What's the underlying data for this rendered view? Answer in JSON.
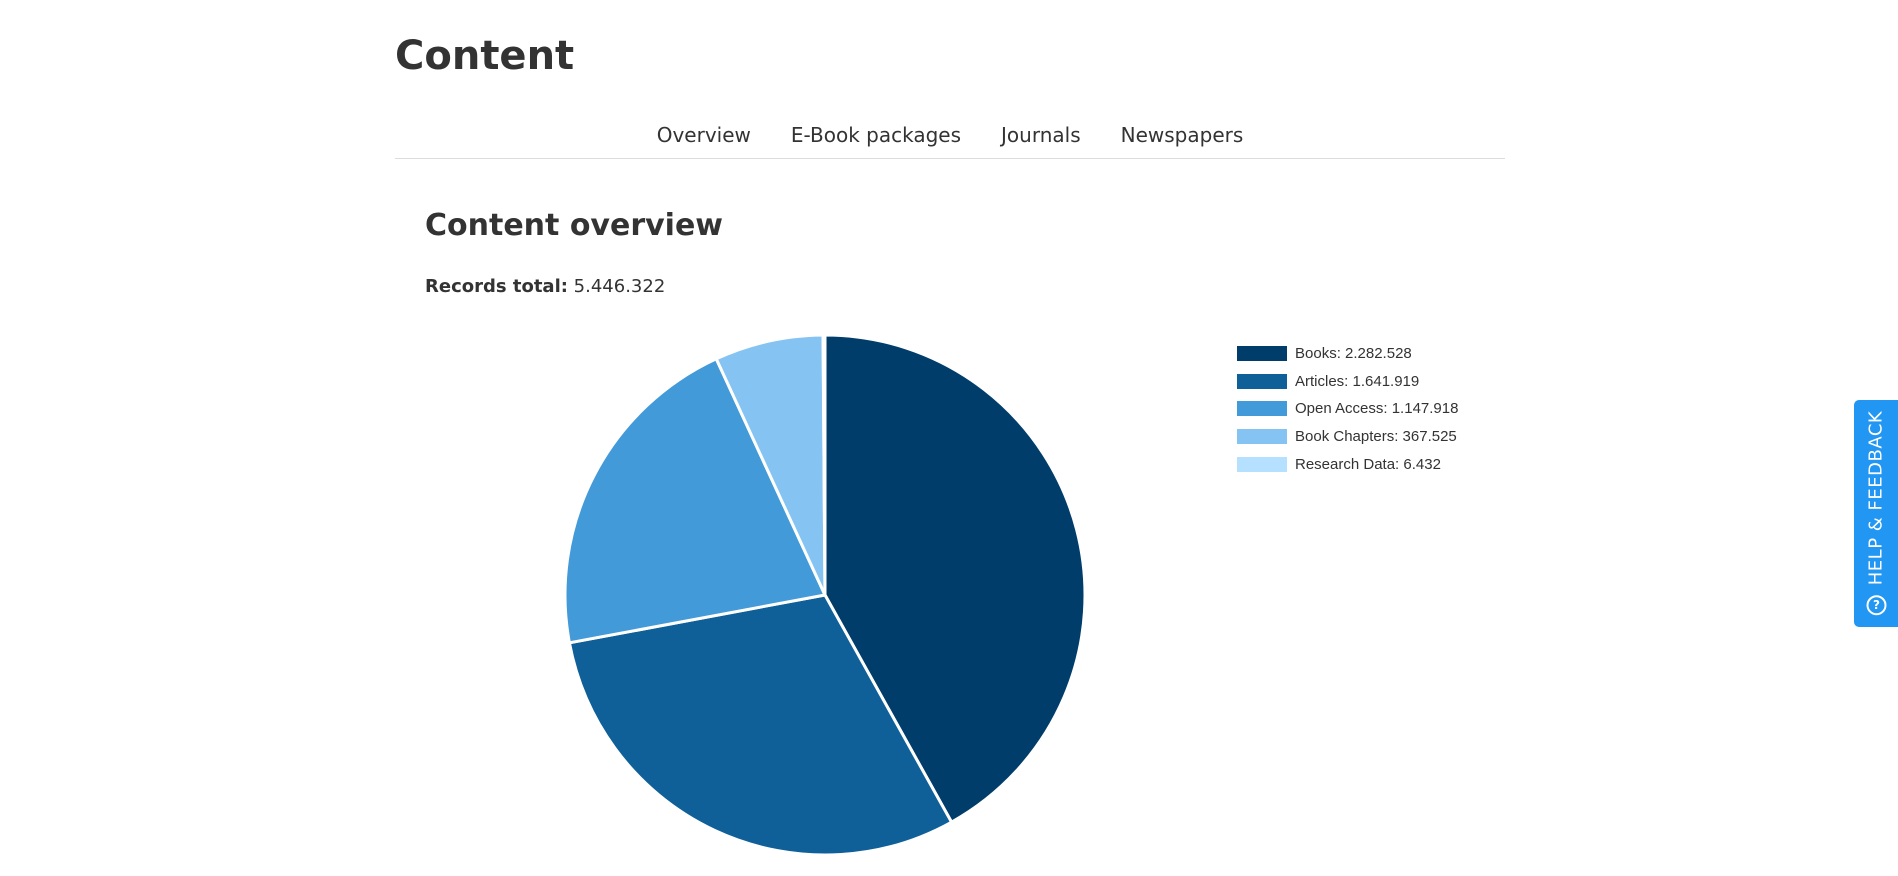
{
  "page": {
    "title": "Content"
  },
  "nav": {
    "tabs": [
      {
        "label": "Overview"
      },
      {
        "label": "E-Book packages"
      },
      {
        "label": "Journals"
      },
      {
        "label": "Newspapers"
      }
    ]
  },
  "overview": {
    "title": "Content overview",
    "records_label": "Records total:",
    "records_value": "5.446.322"
  },
  "chart_data": {
    "type": "pie",
    "series": [
      {
        "name": "Books",
        "value": 2282528,
        "label": "Books: 2.282.528",
        "color": "#003d6b"
      },
      {
        "name": "Articles",
        "value": 1641919,
        "label": "Articles: 1.641.919",
        "color": "#0f5f99"
      },
      {
        "name": "Open Access",
        "value": 1147918,
        "label": "Open Access: 1.147.918",
        "color": "#429ad8"
      },
      {
        "name": "Book Chapters",
        "value": 367525,
        "label": "Book Chapters: 367.525",
        "color": "#85c4f2"
      },
      {
        "name": "Research Data",
        "value": 6432,
        "label": "Research Data: 6.432",
        "color": "#b6e0ff"
      }
    ],
    "legend_position": "right"
  },
  "feedback": {
    "label": "HELP & FEEDBACK",
    "icon": "question-circle-icon",
    "color": "#2196f3"
  }
}
